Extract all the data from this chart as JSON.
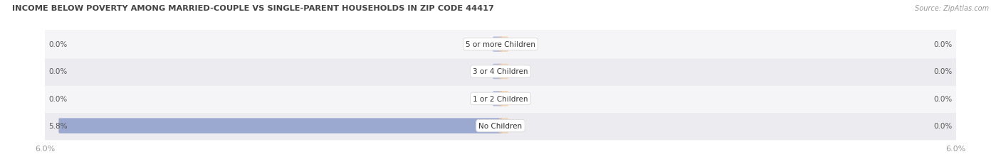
{
  "title": "INCOME BELOW POVERTY AMONG MARRIED-COUPLE VS SINGLE-PARENT HOUSEHOLDS IN ZIP CODE 44417",
  "source": "Source: ZipAtlas.com",
  "categories": [
    "No Children",
    "1 or 2 Children",
    "3 or 4 Children",
    "5 or more Children"
  ],
  "married_values": [
    5.8,
    0.0,
    0.0,
    0.0
  ],
  "single_values": [
    0.0,
    0.0,
    0.0,
    0.0
  ],
  "max_value": 6.0,
  "married_color": "#9ba8d0",
  "single_color": "#f5c896",
  "married_color_legend": "#8f9fcb",
  "single_color_legend": "#f0a040",
  "row_bg_odd": "#ebebf0",
  "row_bg_even": "#f5f5f7",
  "label_color": "#555555",
  "title_color": "#444444",
  "axis_label_color": "#999999",
  "background_color": "#ffffff",
  "figsize": [
    14.06,
    2.32
  ],
  "dpi": 100
}
